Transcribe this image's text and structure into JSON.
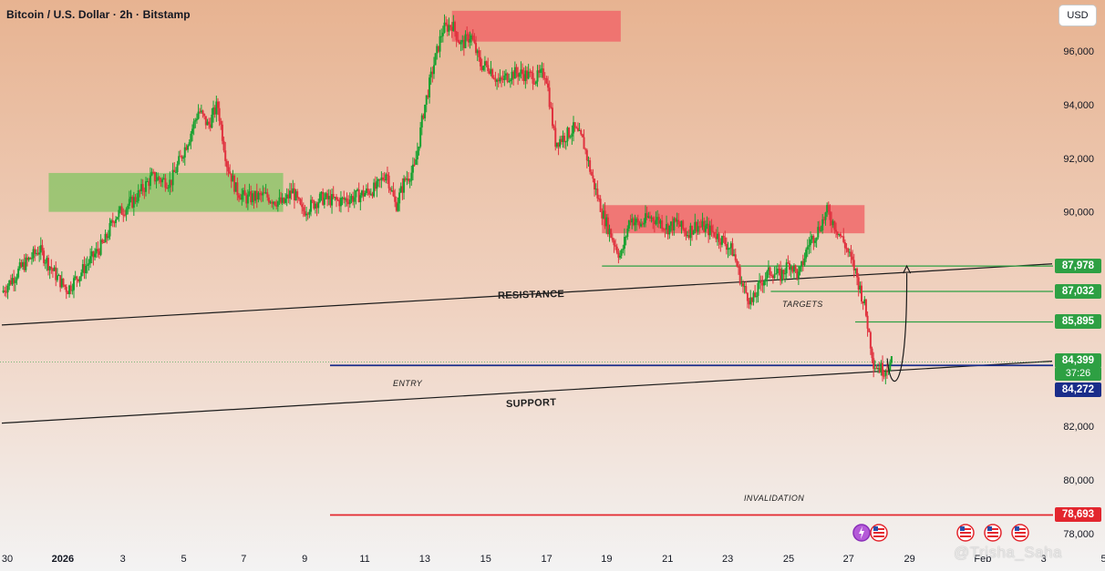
{
  "header": {
    "title": "Bitcoin / U.S. Dollar · 2h · Bitstamp",
    "currency_button": "USD"
  },
  "colors": {
    "up": "#18a130",
    "down": "#e0313e",
    "zone_green": "#8fc46b",
    "zone_red": "#f0686a",
    "line_green": "#2ea043",
    "entry_blue": "#1a2d8a",
    "invalid_red": "#e3262e",
    "bg_top": "#e9b896",
    "bg_bottom": "#f2f2f2"
  },
  "chart_data": {
    "type": "candlestick",
    "symbol": "Bitcoin / U.S. Dollar",
    "interval": "2h",
    "exchange": "Bitstamp",
    "x_tick_labels": [
      "30",
      "2026",
      "3",
      "5",
      "7",
      "9",
      "11",
      "13",
      "15",
      "17",
      "19",
      "21",
      "23",
      "25",
      "27",
      "29",
      "Feb",
      "3",
      "5"
    ],
    "y_ticks": [
      96000,
      94000,
      92000,
      90000,
      82000,
      80000,
      78000
    ],
    "y_tick_labels": [
      "96,000",
      "94,000",
      "92,000",
      "90,000",
      "82,000",
      "80,000",
      "78,000"
    ],
    "ylim": [
      77600,
      97800
    ],
    "close_path": [
      [
        0,
        87000
      ],
      [
        2,
        87900
      ],
      [
        4,
        88600
      ],
      [
        6,
        87500
      ],
      [
        7,
        87100
      ],
      [
        9,
        88000
      ],
      [
        11,
        88900
      ],
      [
        12,
        89800
      ],
      [
        13,
        90100
      ],
      [
        14,
        90400
      ],
      [
        16,
        91300
      ],
      [
        18,
        91100
      ],
      [
        20,
        92800
      ],
      [
        21,
        93800
      ],
      [
        22,
        93200
      ],
      [
        23,
        94000
      ],
      [
        24,
        91800
      ],
      [
        25,
        90800
      ],
      [
        26,
        90500
      ],
      [
        28,
        90600
      ],
      [
        30,
        90300
      ],
      [
        31,
        90800
      ],
      [
        32,
        90000
      ],
      [
        34,
        90500
      ],
      [
        36,
        90400
      ],
      [
        38,
        90600
      ],
      [
        40,
        90900
      ],
      [
        41,
        91500
      ],
      [
        42,
        90200
      ],
      [
        43,
        91200
      ],
      [
        44,
        91600
      ],
      [
        45,
        93800
      ],
      [
        46,
        95400
      ],
      [
        47,
        96800
      ],
      [
        48,
        97000
      ],
      [
        49,
        96200
      ],
      [
        50,
        96600
      ],
      [
        51,
        95500
      ],
      [
        52,
        95400
      ],
      [
        53,
        94800
      ],
      [
        54,
        95100
      ],
      [
        55,
        95200
      ],
      [
        56,
        95100
      ],
      [
        57,
        95000
      ],
      [
        58,
        95200
      ],
      [
        59,
        92600
      ],
      [
        60,
        92800
      ],
      [
        61,
        93100
      ],
      [
        62,
        92600
      ],
      [
        63,
        91200
      ],
      [
        64,
        90000
      ],
      [
        65,
        89100
      ],
      [
        66,
        88300
      ],
      [
        67,
        89800
      ],
      [
        68,
        89500
      ],
      [
        69,
        89800
      ],
      [
        70,
        89700
      ],
      [
        71,
        89400
      ],
      [
        72,
        89600
      ],
      [
        73,
        89200
      ],
      [
        74,
        89500
      ],
      [
        75,
        89400
      ],
      [
        76,
        89200
      ],
      [
        77,
        88900
      ],
      [
        78,
        88500
      ],
      [
        79,
        87200
      ],
      [
        80,
        86600
      ],
      [
        81,
        87400
      ],
      [
        82,
        87800
      ],
      [
        83,
        87600
      ],
      [
        84,
        88100
      ],
      [
        85,
        87600
      ],
      [
        86,
        88800
      ],
      [
        87,
        89300
      ],
      [
        88,
        90000
      ],
      [
        89,
        89400
      ],
      [
        90,
        88700
      ],
      [
        91,
        87800
      ],
      [
        92,
        86500
      ],
      [
        93,
        84300
      ],
      [
        94,
        84100
      ],
      [
        95,
        84400
      ]
    ],
    "zones": [
      {
        "kind": "supply",
        "x": [
          48,
          66
        ],
        "y": [
          96350,
          97500
        ]
      },
      {
        "kind": "demand",
        "x": [
          5,
          30
        ],
        "y": [
          90000,
          91450
        ]
      },
      {
        "kind": "supply",
        "x": [
          64,
          92
        ],
        "y": [
          89200,
          90250
        ]
      }
    ],
    "trendlines": [
      {
        "label": "RESISTANCE",
        "from": [
          0,
          85780
        ],
        "to": [
          112,
          88060
        ]
      },
      {
        "label": "SUPPORT",
        "from": [
          0,
          82120
        ],
        "to": [
          112,
          84430
        ]
      }
    ],
    "levels": [
      {
        "label": "TARGETS",
        "price": 87978,
        "tag": "87,978",
        "color": "#2ea043",
        "x_start": 64
      },
      {
        "label": "",
        "price": 87032,
        "tag": "87,032",
        "color": "#2ea043",
        "x_start": 82
      },
      {
        "label": "",
        "price": 85895,
        "tag": "85,895",
        "color": "#2ea043",
        "x_start": 91
      },
      {
        "label": "ENTRY",
        "price": 84272,
        "tag": "84,272",
        "color": "#1a2d8a",
        "x_start": 35
      },
      {
        "label": "INVALIDATION",
        "price": 78693,
        "tag": "78,693",
        "color": "#e3262e",
        "x_start": 35
      }
    ],
    "last_price": {
      "value": 84399,
      "label": "84,399",
      "countdown": "37:26"
    },
    "annotations": {
      "resistance": "RESISTANCE",
      "support": "SUPPORT",
      "targets": "TARGETS",
      "entry": "ENTRY",
      "invalidation": "INVALIDATION"
    }
  },
  "watermark": "@Trisha_Saha"
}
